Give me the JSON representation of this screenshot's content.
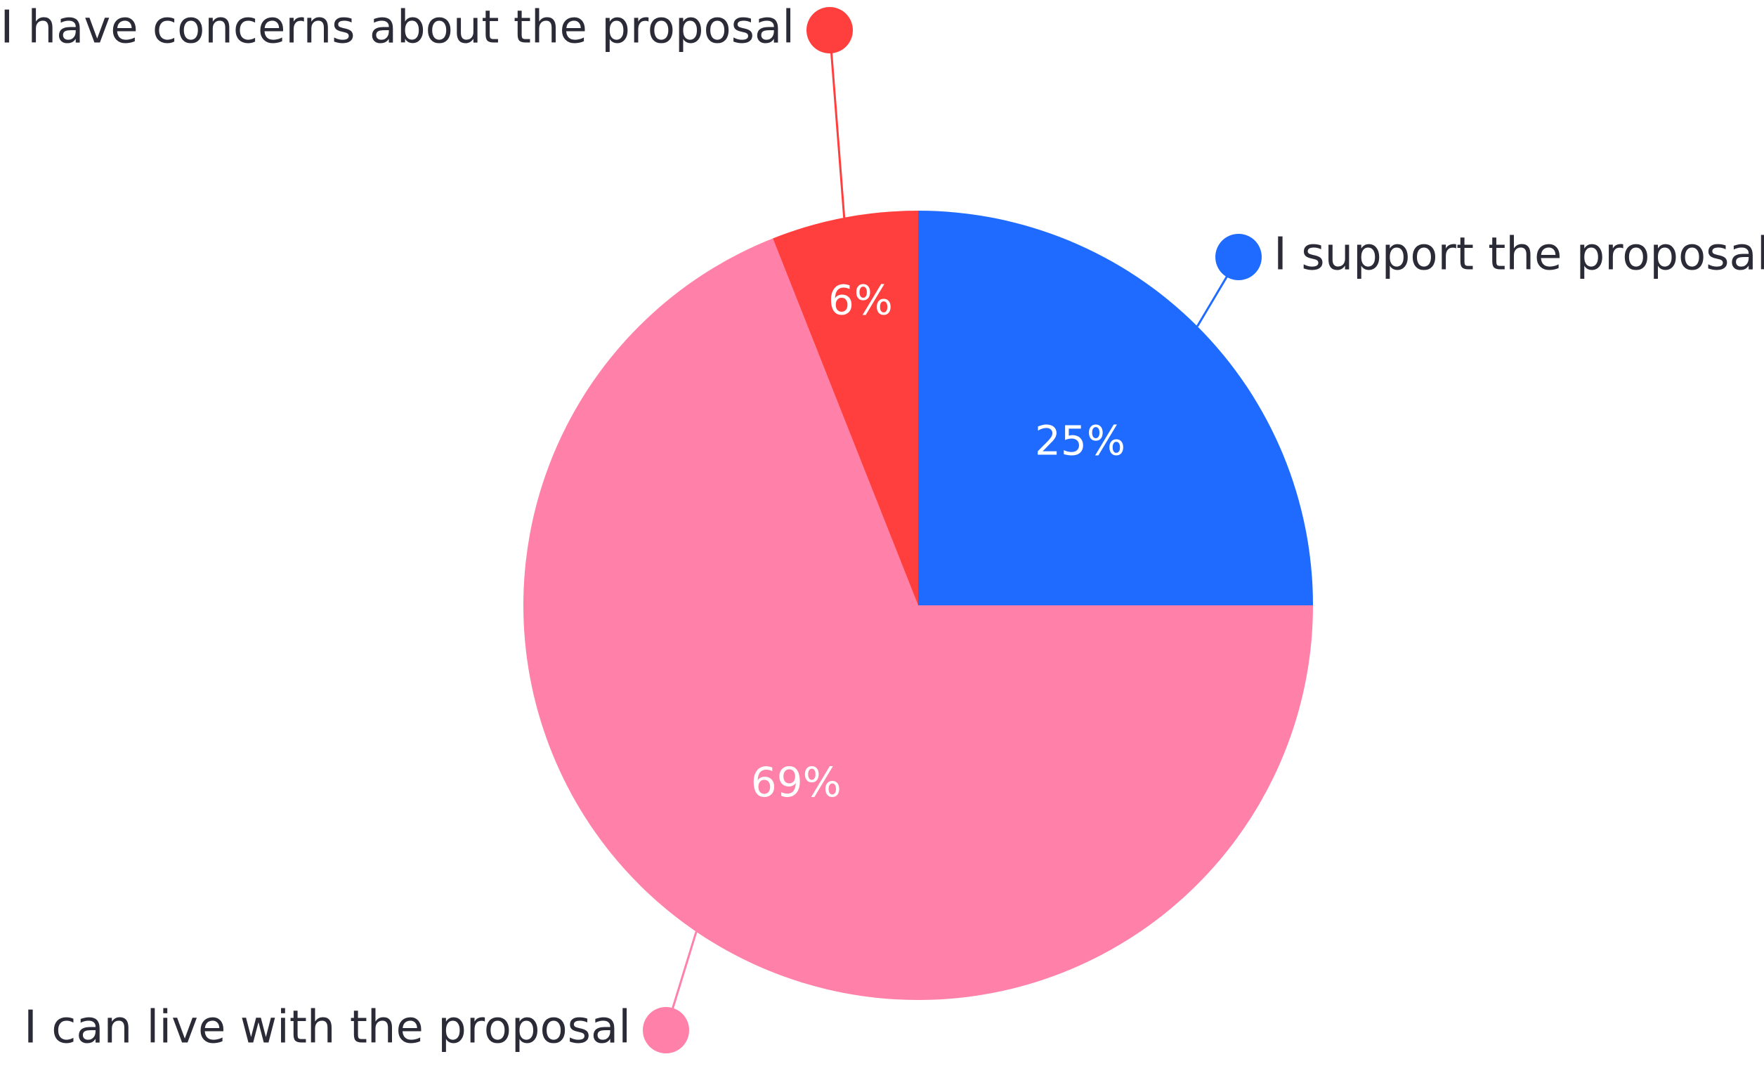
{
  "chart_data": {
    "type": "pie",
    "categories": [
      "I support the proposal",
      "I can live with the proposal",
      "I have concerns about the proposal"
    ],
    "values": [
      25,
      69,
      6
    ],
    "value_labels": [
      "25%",
      "69%",
      "6%"
    ],
    "colors": [
      "#1f6bff",
      "#ff80a9",
      "#ff3f3d"
    ],
    "legend": "callout labels around the pie",
    "start_angle": "12 o'clock, clockwise"
  }
}
